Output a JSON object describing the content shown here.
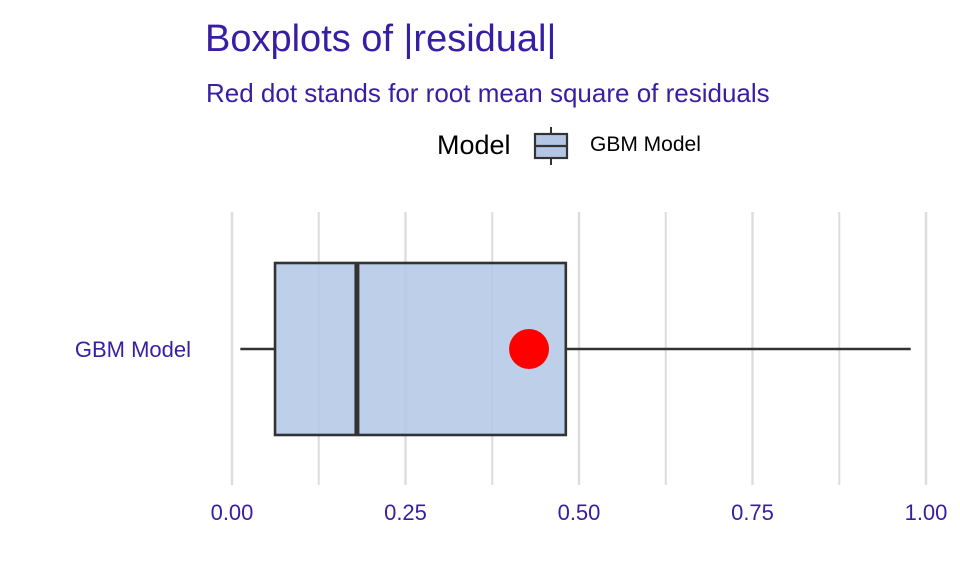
{
  "chart_data": {
    "type": "boxplot",
    "title": "Boxplots of |residual|",
    "subtitle": "Red dot stands for root mean square of residuals",
    "legend": {
      "title": "Model",
      "entries": [
        "GBM Model"
      ],
      "placement": "top"
    },
    "xlim": [
      0,
      1
    ],
    "x_ticks": [
      {
        "value": 0,
        "label": "0.00"
      },
      {
        "value": 0.25,
        "label": "0.25"
      },
      {
        "value": 0.5,
        "label": "0.50"
      },
      {
        "value": 0.75,
        "label": "0.75"
      },
      {
        "value": 1,
        "label": "1.00"
      }
    ],
    "grid": true,
    "series": [
      {
        "name": "GBM Model",
        "min": 0.012,
        "q1": 0.062,
        "median": 0.18,
        "q3": 0.481,
        "max": 0.978,
        "rmse": 0.428
      }
    ],
    "colors": {
      "text": "#371ea3",
      "box_fill": "#b3c7e5",
      "box_stroke": "#333333",
      "point": "#ff0000",
      "grid": "#dddddd"
    }
  }
}
